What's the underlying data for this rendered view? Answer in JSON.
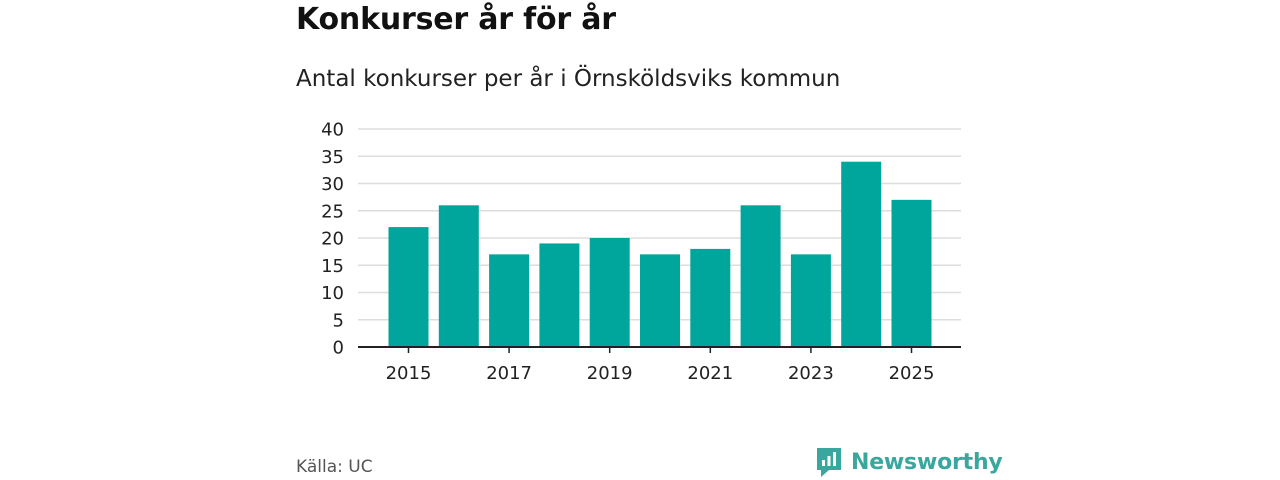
{
  "header": {
    "title": "Konkurser år för år",
    "subtitle": "Antal konkurser per år i Örnsköldsviks kommun"
  },
  "footer": {
    "source": "Källa: UC",
    "brand": "Newsworthy"
  },
  "colors": {
    "bar": "#00a69b",
    "grid": "#dddddd",
    "axis": "#222222",
    "brand": "#3aa79e"
  },
  "chart_data": {
    "type": "bar",
    "title": "Konkurser år för år",
    "subtitle": "Antal konkurser per år i Örnsköldsviks kommun",
    "xlabel": "",
    "ylabel": "",
    "categories": [
      "2015",
      "2016",
      "2017",
      "2018",
      "2019",
      "2020",
      "2021",
      "2022",
      "2023",
      "2024",
      "2025"
    ],
    "values": [
      22,
      26,
      17,
      19,
      20,
      17,
      18,
      26,
      17,
      34,
      27
    ],
    "x_tick_labels": [
      "2015",
      "2017",
      "2019",
      "2021",
      "2023",
      "2025"
    ],
    "y_ticks": [
      0,
      5,
      10,
      15,
      20,
      25,
      30,
      35,
      40
    ],
    "ylim": [
      0,
      40
    ],
    "grid": true
  }
}
